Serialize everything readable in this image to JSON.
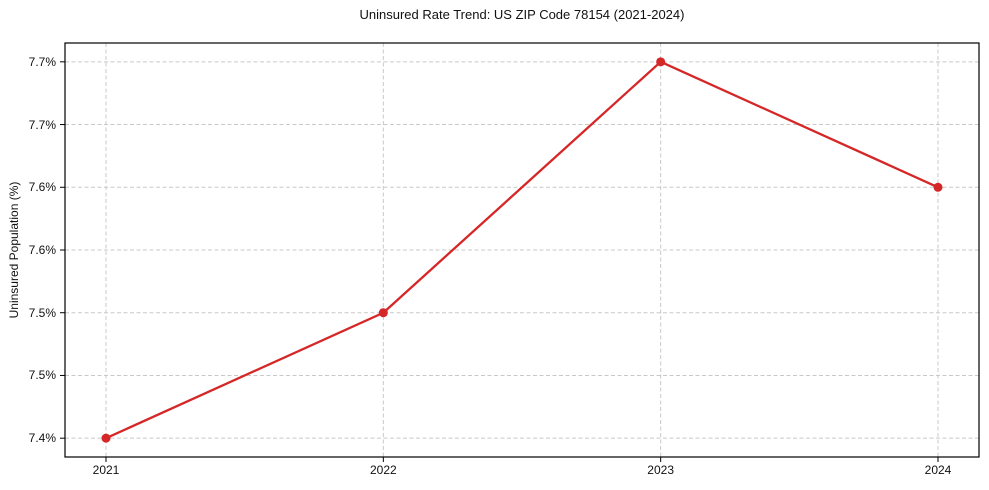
{
  "chart_data": {
    "type": "line",
    "title": "Uninsured Rate Trend: US ZIP Code 78154 (2021-2024)",
    "xlabel": "",
    "ylabel": "Uninsured Population (%)",
    "x": [
      2021,
      2022,
      2023,
      2024
    ],
    "values": [
      7.4,
      7.5,
      7.7,
      7.6
    ],
    "x_tick_labels": [
      "2021",
      "2022",
      "2023",
      "2024"
    ],
    "y_ticks": [
      7.4,
      7.45,
      7.5,
      7.55,
      7.6,
      7.65,
      7.7
    ],
    "y_tick_labels": [
      "7.4%",
      "7.5%",
      "7.5%",
      "7.6%",
      "7.6%",
      "7.7%",
      "7.7%"
    ],
    "ylim": [
      7.385,
      7.715
    ],
    "grid": true,
    "grid_style": "dashed",
    "legend": "none",
    "line_color": "#d62728",
    "marker": "circle"
  }
}
